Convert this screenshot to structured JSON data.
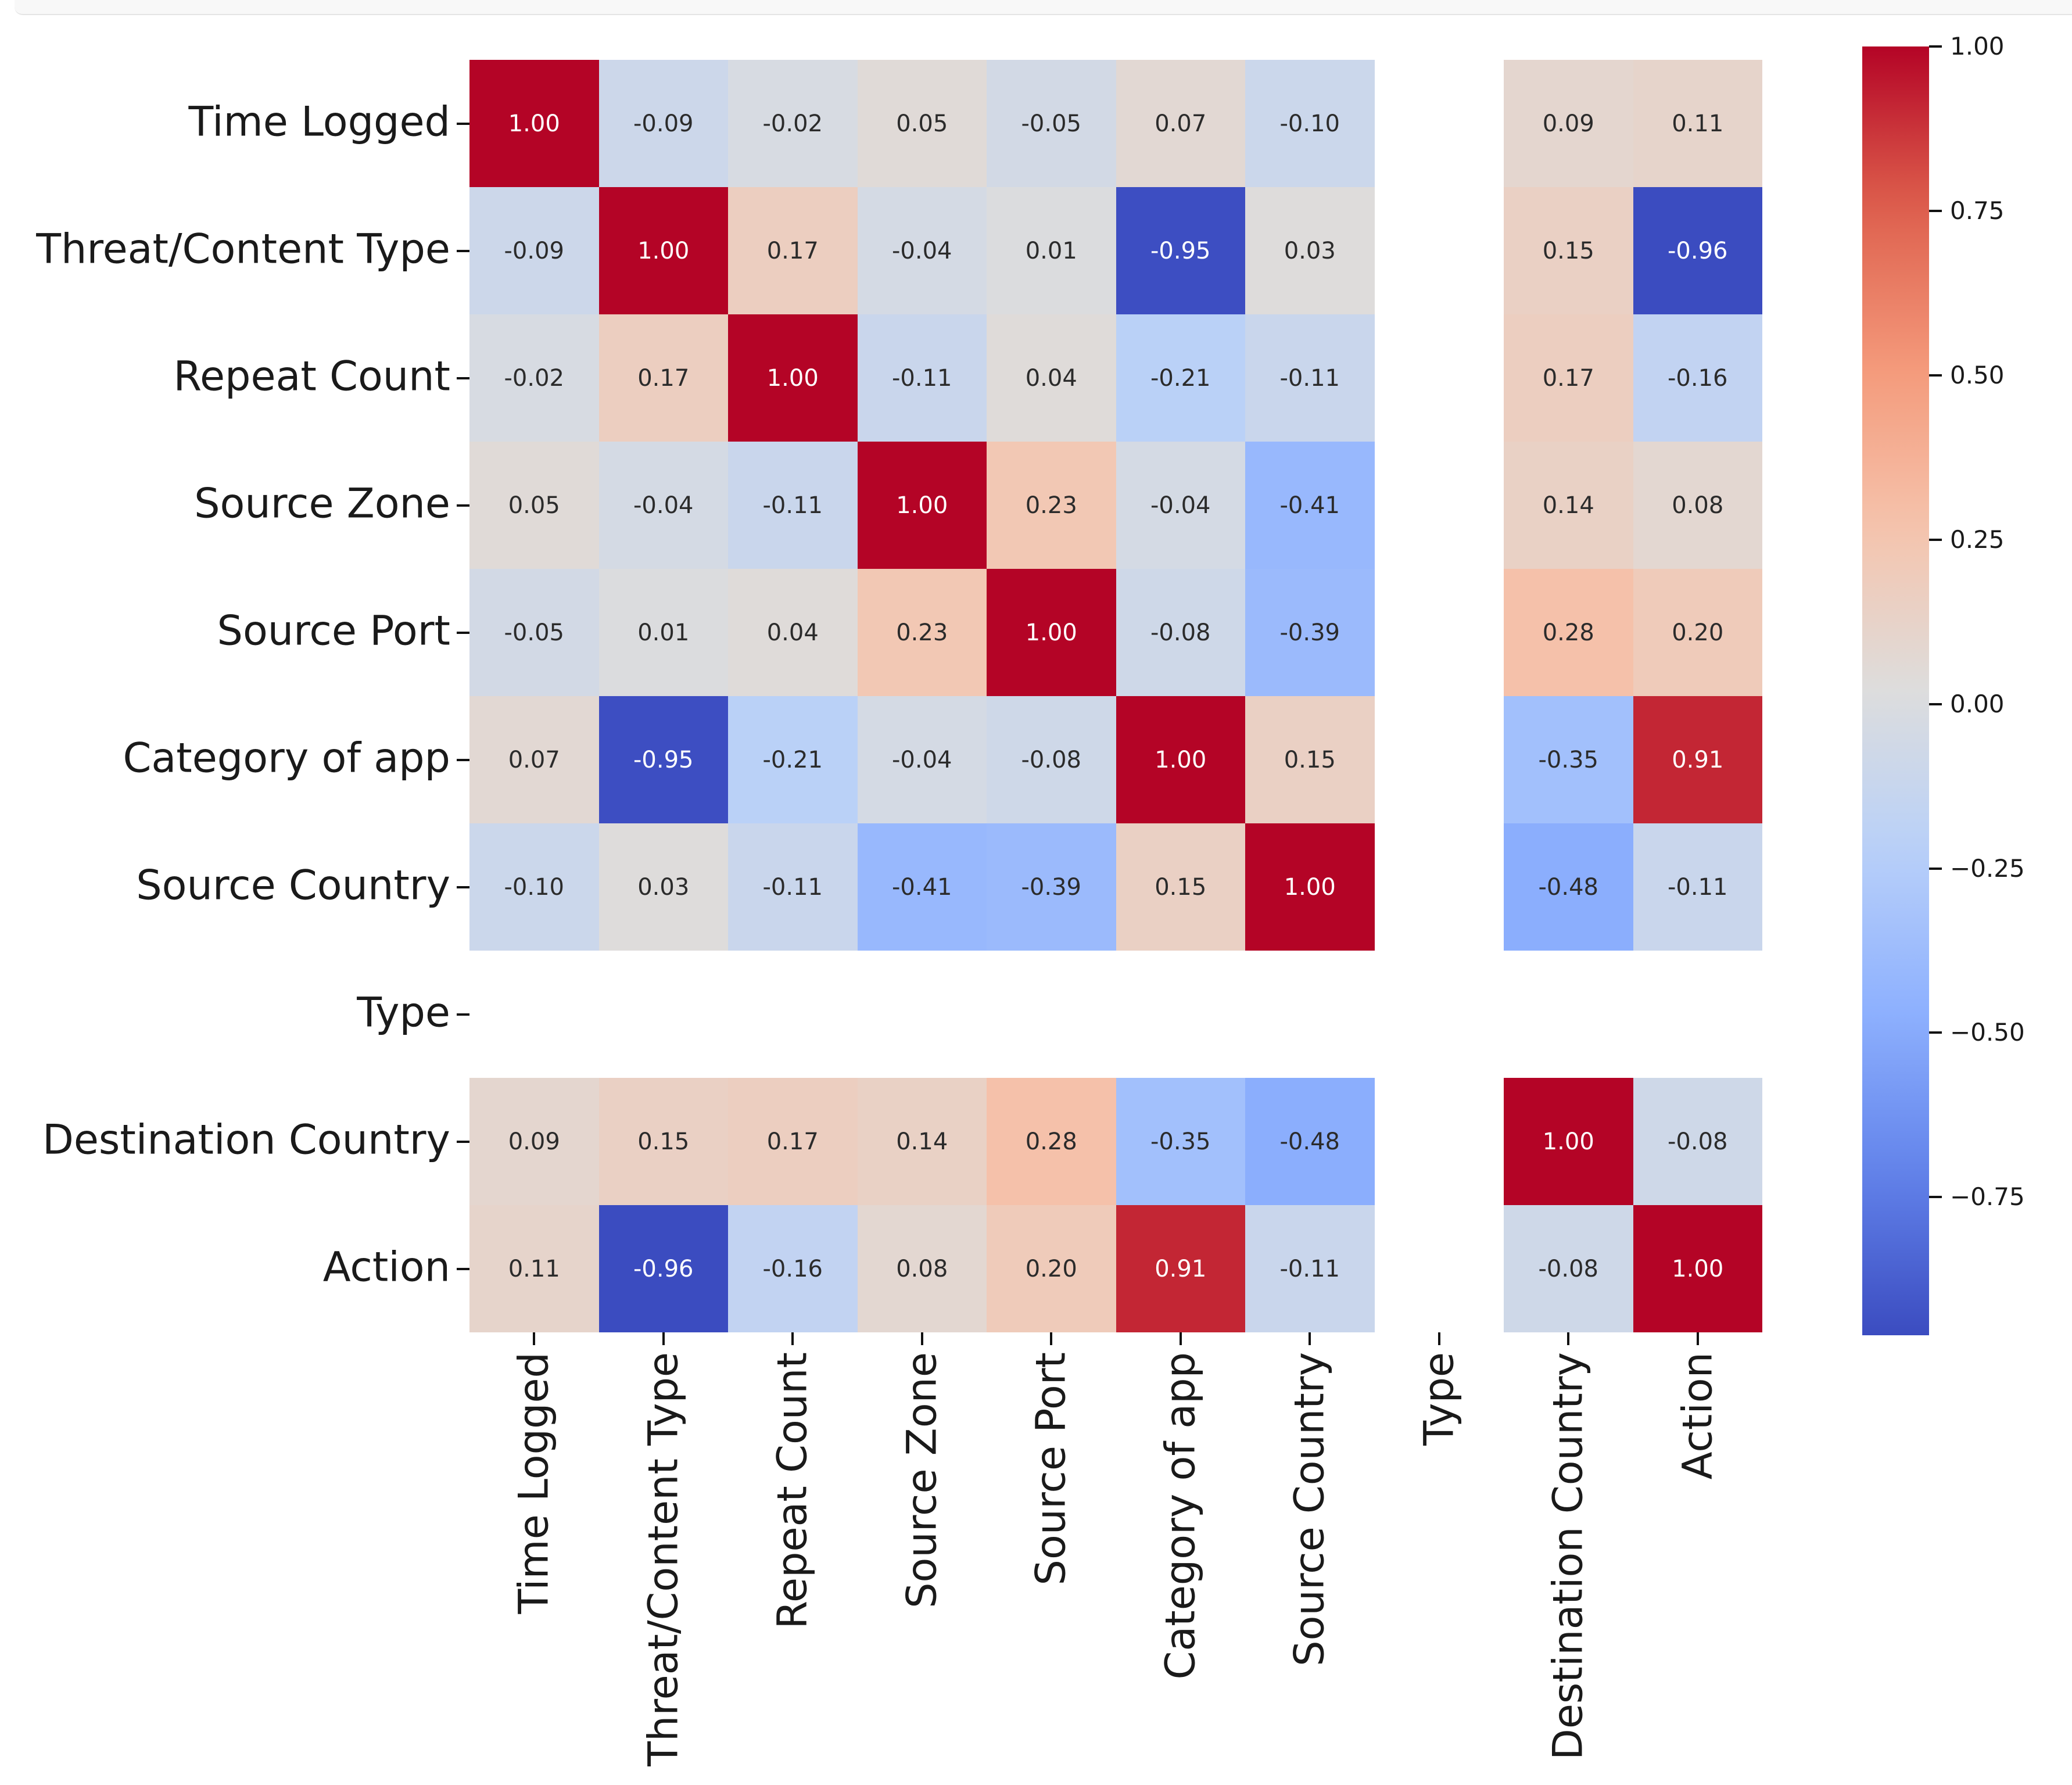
{
  "page": {
    "background": "#ffffff",
    "window_chrome_strip": true
  },
  "chart_data": {
    "type": "heatmap",
    "title": "",
    "xlabel": "",
    "ylabel": "",
    "grid": false,
    "legend_position": "colorbar-right",
    "categories": [
      "Time Logged",
      "Threat/Content Type",
      "Repeat Count",
      "Source Zone",
      "Source Port",
      "Category of app",
      "Source Country",
      "Type",
      "Destination Country",
      "Action"
    ],
    "matrix": [
      [
        1.0,
        -0.09,
        -0.02,
        0.05,
        -0.05,
        0.07,
        -0.1,
        null,
        0.09,
        0.11
      ],
      [
        -0.09,
        1.0,
        0.17,
        -0.04,
        0.01,
        -0.95,
        0.03,
        null,
        0.15,
        -0.96
      ],
      [
        -0.02,
        0.17,
        1.0,
        -0.11,
        0.04,
        -0.21,
        -0.11,
        null,
        0.17,
        -0.16
      ],
      [
        0.05,
        -0.04,
        -0.11,
        1.0,
        0.23,
        -0.04,
        -0.41,
        null,
        0.14,
        0.08
      ],
      [
        -0.05,
        0.01,
        0.04,
        0.23,
        1.0,
        -0.08,
        -0.39,
        null,
        0.28,
        0.2
      ],
      [
        0.07,
        -0.95,
        -0.21,
        -0.04,
        -0.08,
        1.0,
        0.15,
        null,
        -0.35,
        0.91
      ],
      [
        -0.1,
        0.03,
        -0.11,
        -0.41,
        -0.39,
        0.15,
        1.0,
        null,
        -0.48,
        -0.11
      ],
      [
        null,
        null,
        null,
        null,
        null,
        null,
        null,
        null,
        null,
        null
      ],
      [
        0.09,
        0.15,
        0.17,
        0.14,
        0.28,
        -0.35,
        -0.48,
        null,
        1.0,
        -0.08
      ],
      [
        0.11,
        -0.96,
        -0.16,
        0.08,
        0.2,
        0.91,
        -0.11,
        null,
        -0.08,
        1.0
      ]
    ],
    "vmin": -0.96,
    "vmax": 1.0,
    "colormap": "coolwarm",
    "annotation_decimals": 2,
    "colorbar": {
      "tick_labels": [
        "1.00",
        "0.75",
        "0.50",
        "0.25",
        "0.00",
        "−0.25",
        "−0.50",
        "−0.75"
      ],
      "tick_values": [
        1.0,
        0.75,
        0.5,
        0.25,
        0.0,
        -0.25,
        -0.5,
        -0.75
      ]
    }
  },
  "colors": {
    "coolwarm_anchors": [
      "#3b4cc0",
      "#6282ea",
      "#8db0fe",
      "#b8d0f9",
      "#dddddd",
      "#f5c4ad",
      "#f49a7b",
      "#de604d",
      "#b40426"
    ],
    "annotation_dark": "#2b2b2b",
    "annotation_light": "#ffffff",
    "axis_label": "#1a1a1a",
    "tick": "#111111",
    "nan_cell": "#ffffff"
  },
  "layout_note": "10x10 correlation matrix; Type row and column are blank (NaN)"
}
